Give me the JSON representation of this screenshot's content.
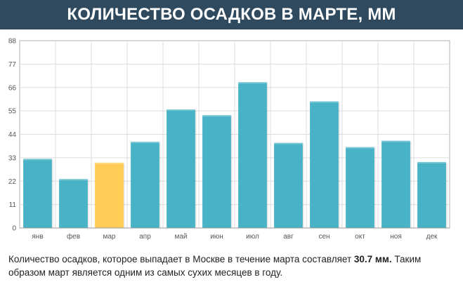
{
  "header": {
    "title": "КОЛИЧЕСТВО ОСАДКОВ В МАРТЕ, ММ"
  },
  "colors": {
    "title_bar": "#2f4a5e",
    "bar": "#48b3c6",
    "bar_highlight": "#ffcc55",
    "grid": "#dddddd",
    "axis": "#b0b0b0"
  },
  "chart_data": {
    "type": "bar",
    "title": "КОЛИЧЕСТВО ОСАДКОВ В МАРТЕ, ММ",
    "xlabel": "",
    "ylabel": "",
    "categories": [
      "янв",
      "фев",
      "мар",
      "апр",
      "май",
      "июн",
      "июл",
      "авг",
      "сен",
      "окт",
      "ноя",
      "дек"
    ],
    "values": [
      32.5,
      23,
      30.7,
      40.5,
      55.7,
      53,
      68.5,
      40,
      59.5,
      38,
      41,
      31
    ],
    "highlight_index": 2,
    "ylim": [
      0,
      88
    ],
    "yticks": [
      0,
      11,
      22,
      33,
      44,
      55,
      66,
      77,
      88
    ],
    "grid": true,
    "legend": "none"
  },
  "caption": {
    "part1": "Количество осадков, которое выпадает в Москве в течение марта составляет ",
    "value": "30.7 мм.",
    "part2": " Таким образом март является одним из самых сухих месяцев в году."
  }
}
